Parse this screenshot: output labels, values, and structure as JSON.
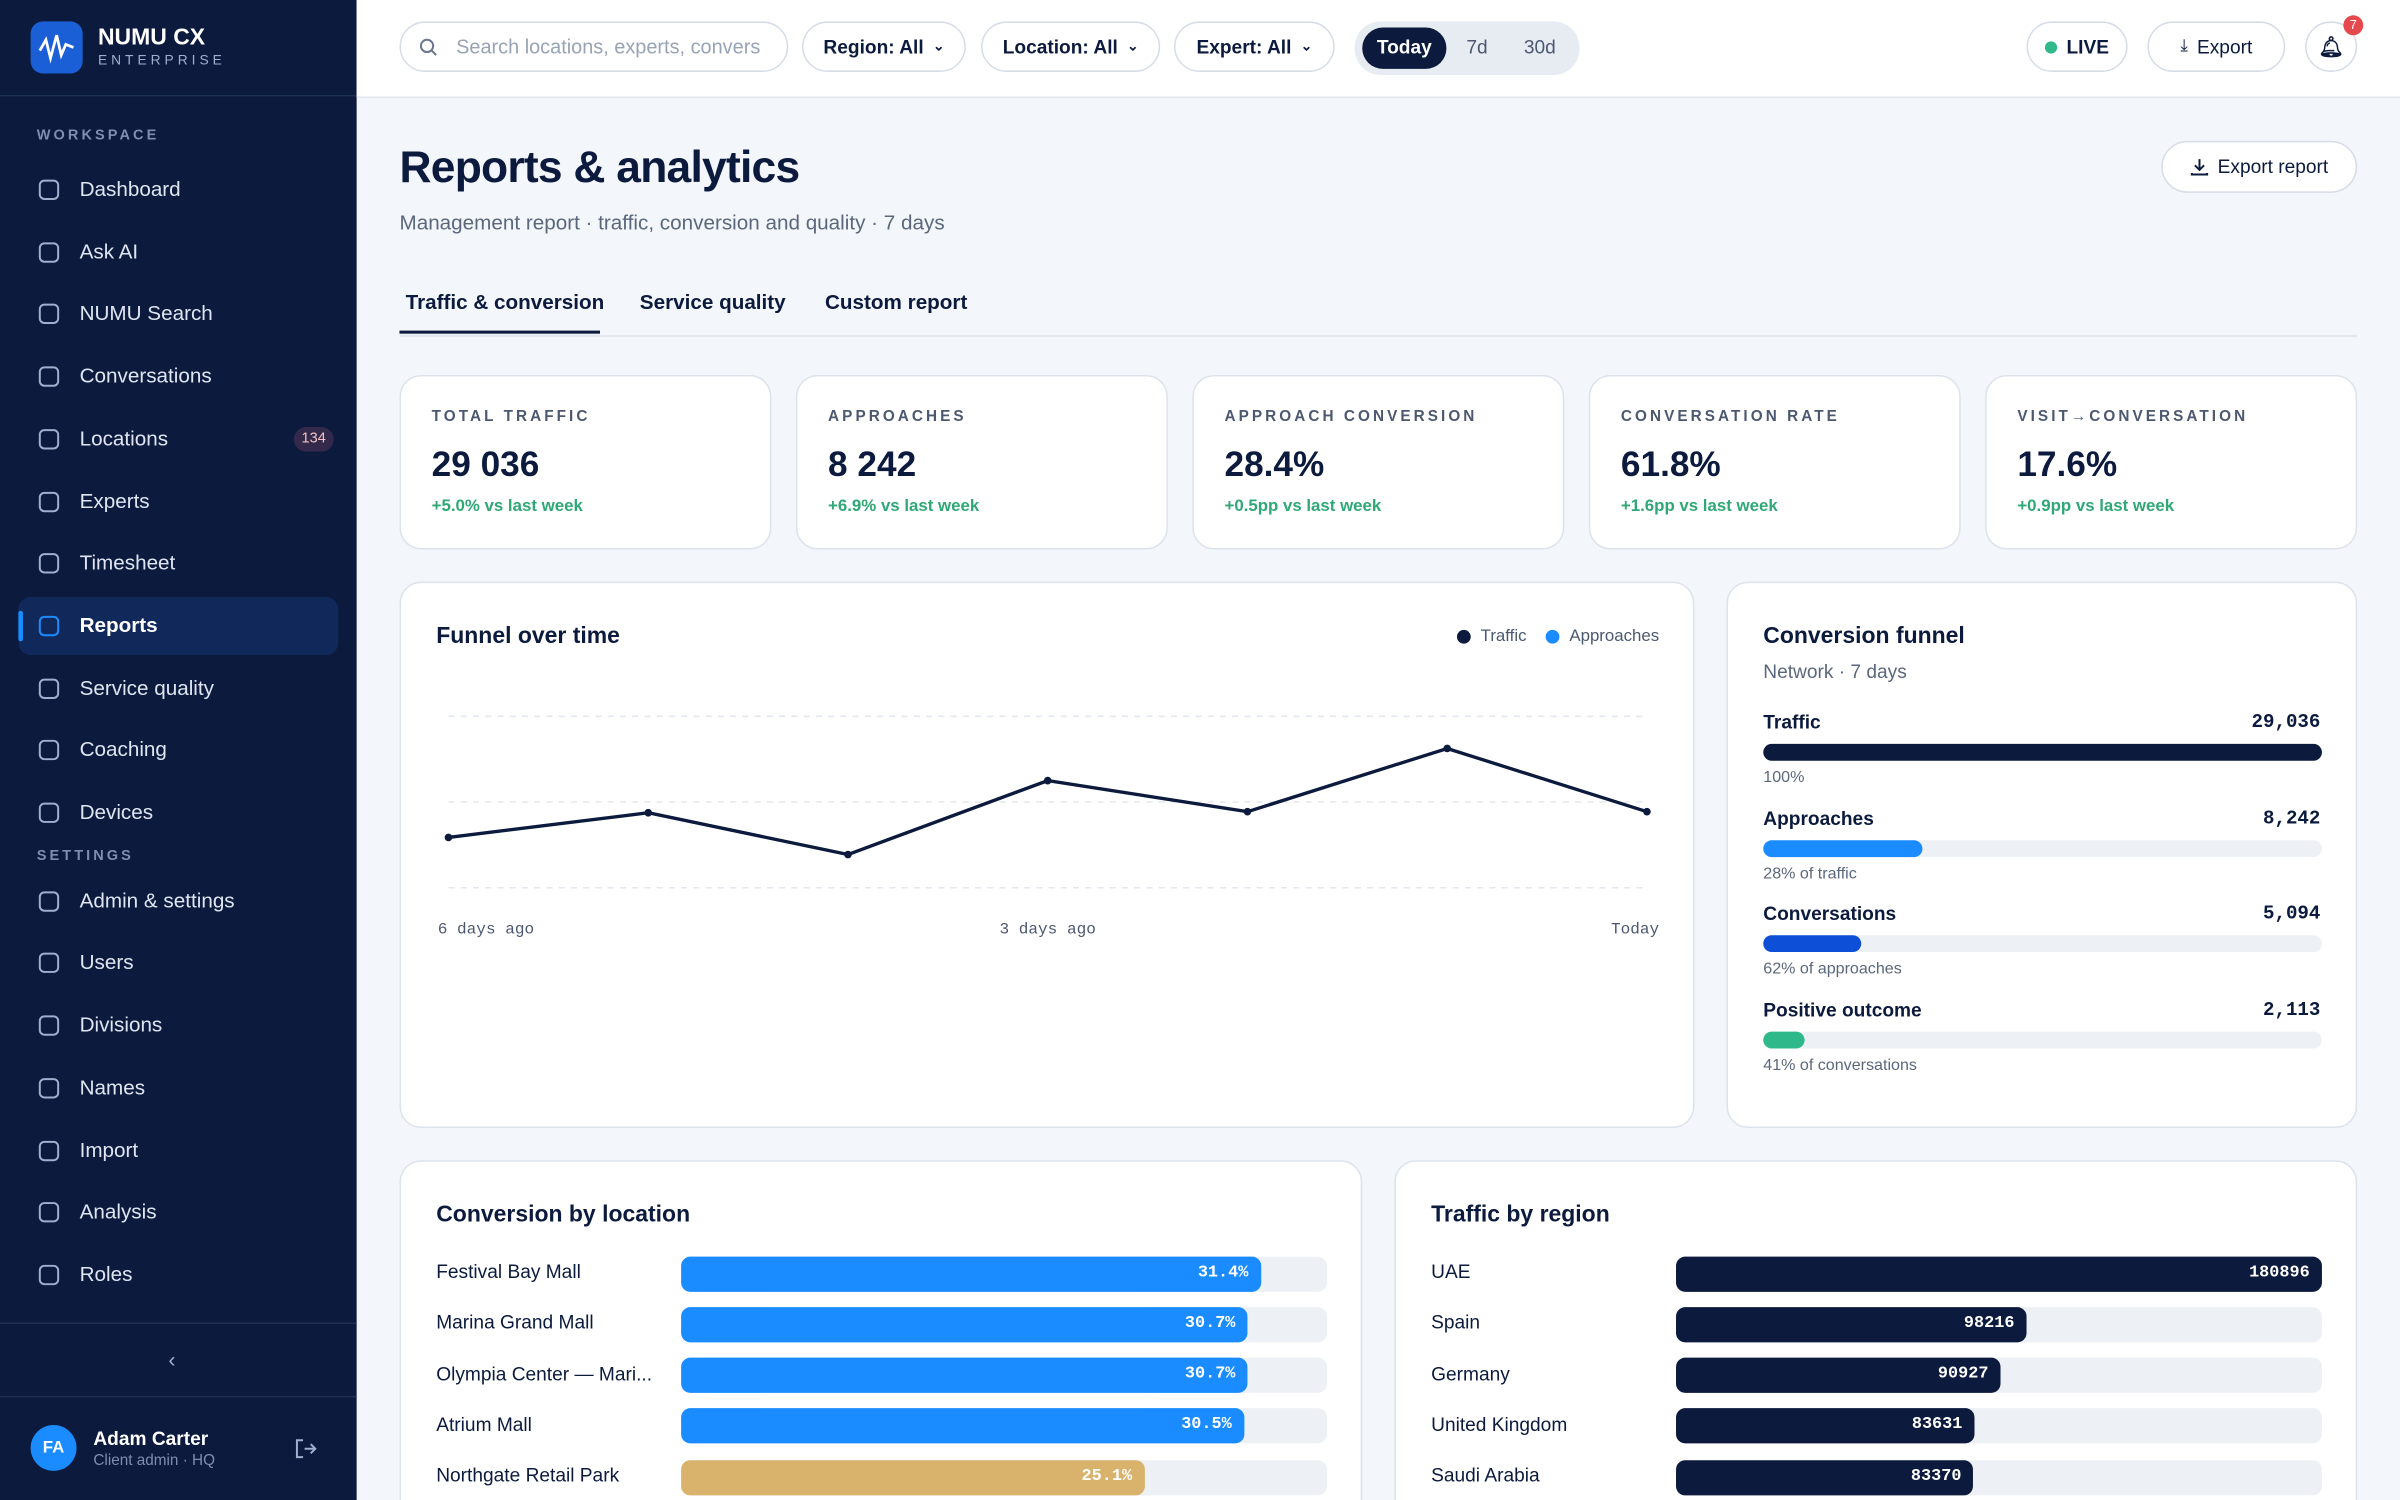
{
  "sidebar": {
    "brand": "NUMU CX",
    "brand_sub": "ENTERPRISE",
    "sections": [
      {
        "title": "WORKSPACE",
        "items": [
          {
            "label": "Dashboard"
          },
          {
            "label": "Ask AI"
          },
          {
            "label": "NUMU Search"
          },
          {
            "label": "Conversations"
          },
          {
            "label": "Locations",
            "badge": 134
          },
          {
            "label": "Experts"
          },
          {
            "label": "Timesheet"
          },
          {
            "label": "Reports",
            "active": true
          },
          {
            "label": "Service quality"
          },
          {
            "label": "Coaching"
          },
          {
            "label": "Devices"
          }
        ]
      },
      {
        "title": "SETTINGS",
        "items": [
          {
            "label": "Admin & settings"
          },
          {
            "label": "Users"
          },
          {
            "label": "Divisions"
          },
          {
            "label": "Names"
          },
          {
            "label": "Import"
          },
          {
            "label": "Analysis"
          },
          {
            "label": "Roles"
          }
        ]
      }
    ],
    "user": {
      "initials": "FA",
      "name": "Adam Carter",
      "role": "Client admin · HQ"
    }
  },
  "topbar": {
    "search_placeholder": "Search locations, experts, convers",
    "filters": [
      "Region: All",
      "Location: All",
      "Expert: All"
    ],
    "ranges": [
      {
        "label": "Today",
        "active": true
      },
      {
        "label": "7d"
      },
      {
        "label": "30d"
      }
    ],
    "live": "LIVE",
    "export": "Export",
    "notifications": 7
  },
  "header": {
    "title": "Reports & analytics",
    "subtitle": "Management report · traffic, conversion and quality · 7 days",
    "export": "Export report"
  },
  "tabs": [
    {
      "label": "Traffic & conversion",
      "active": true
    },
    {
      "label": "Service quality"
    },
    {
      "label": "Custom report"
    }
  ],
  "kpis": [
    {
      "label": "TOTAL TRAFFIC",
      "value": "29 036",
      "delta": "+5.0% vs last week"
    },
    {
      "label": "APPROACHES",
      "value": "8 242",
      "delta": "+6.9% vs last week"
    },
    {
      "label": "APPROACH CONVERSION",
      "value": "28.4%",
      "delta": "+0.5pp vs last week"
    },
    {
      "label": "CONVERSATION RATE",
      "value": "61.8%",
      "delta": "+1.6pp vs last week"
    },
    {
      "label": "VISIT→CONVERSATION",
      "value": "17.6%",
      "delta": "+0.9pp vs last week"
    }
  ],
  "chart_data": [
    {
      "type": "line",
      "title": "Funnel over time",
      "categories": [
        "6 days ago",
        null,
        null,
        "3 days ago",
        null,
        null,
        "Today"
      ],
      "series": [
        {
          "name": "Traffic",
          "color": "#0b1a3d",
          "values": [
            3870,
            4100,
            3710,
            4400,
            4110,
            4700,
            4110
          ]
        },
        {
          "name": "Approaches",
          "color": "#1a8cff",
          "values": [
            null,
            null,
            null,
            null,
            null,
            null,
            null
          ]
        }
      ],
      "ylim": [
        3400,
        5000
      ],
      "yticks": [
        3400,
        4200,
        5000
      ],
      "grid": true,
      "legend": "top-right"
    },
    {
      "type": "funnel",
      "title": "Conversion funnel",
      "subtitle": "Network · 7 days",
      "categories": [
        "Traffic",
        "Approaches",
        "Conversations",
        "Positive outcome"
      ],
      "values": [
        29036,
        8242,
        5094,
        2113
      ],
      "value_labels": [
        "29,036",
        "8,242",
        "5,094",
        "2,113"
      ],
      "captions": [
        "100%",
        "28% of traffic",
        "62% of approaches",
        "41% of conversations"
      ],
      "colors": [
        "#0b1a3d",
        "#1a8cff",
        "#0d4fd6",
        "#2fb889"
      ],
      "xlim": [
        0,
        29036
      ]
    },
    {
      "type": "hbar",
      "title": "Conversion by location",
      "categories": [
        "Festival Bay Mall",
        "Marina Grand Mall",
        "Olympia Center — Mari...",
        "Atrium Mall",
        "Northgate Retail Park"
      ],
      "values": [
        31.4,
        30.7,
        30.7,
        30.5,
        25.1
      ],
      "value_labels": [
        "31.4%",
        "30.7%",
        "30.7%",
        "30.5%",
        "25.1%"
      ],
      "colors": [
        "#1a8cff",
        "#1a8cff",
        "#1a8cff",
        "#1a8cff",
        "#d9b36c"
      ],
      "xlim": [
        0,
        35
      ]
    },
    {
      "type": "hbar",
      "title": "Traffic by region",
      "categories": [
        "UAE",
        "Spain",
        "Germany",
        "United Kingdom",
        "Saudi Arabia"
      ],
      "values": [
        180896,
        98216,
        90927,
        83631,
        83370
      ],
      "colors": [
        "#0b1a3d",
        "#0b1a3d",
        "#0b1a3d",
        "#0b1a3d",
        "#0b1a3d"
      ],
      "xlim": [
        0,
        180896
      ]
    }
  ]
}
